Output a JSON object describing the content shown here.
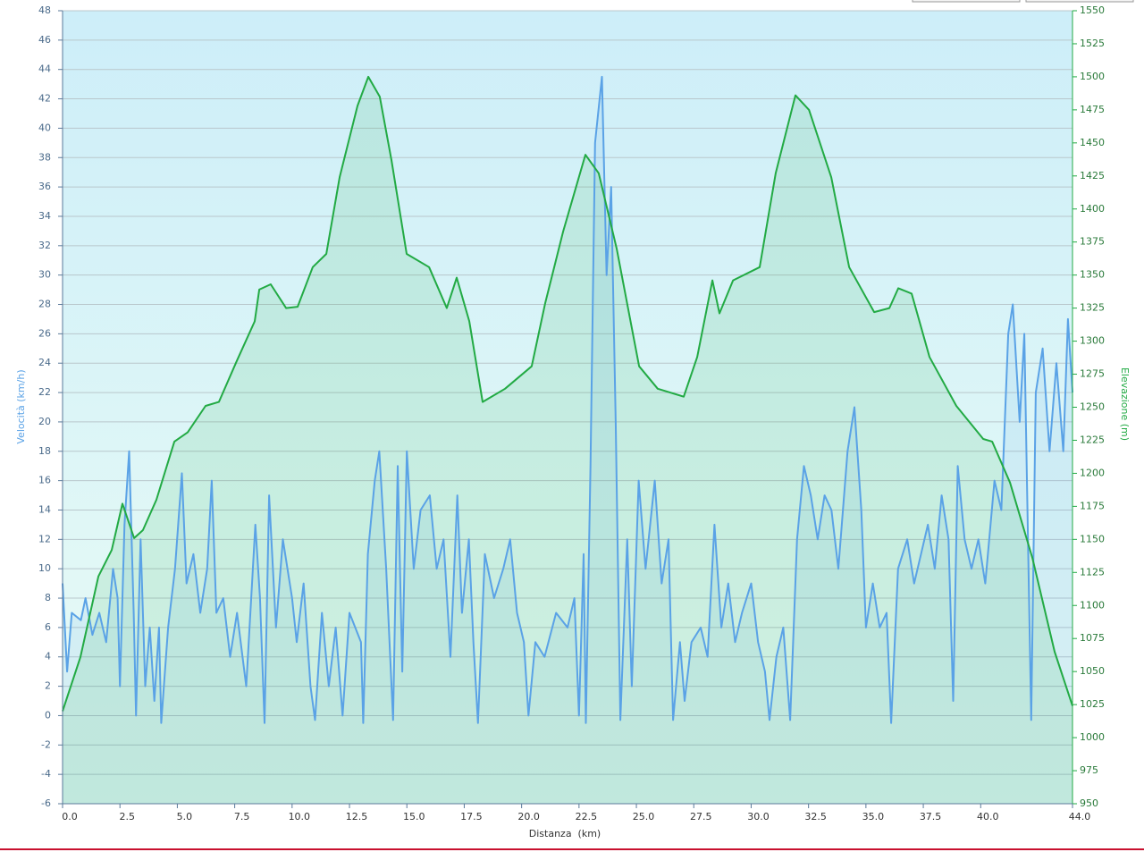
{
  "chart_data": {
    "type": "line",
    "xlabel": "Distanza  (km)",
    "ylabel": "Velocità (km/h)",
    "y2label": "Elevazione (m)",
    "xlim": [
      0,
      44
    ],
    "xticks": [
      {
        "value": 0,
        "label": "0.0"
      },
      2.5,
      {
        "value": 5,
        "label": "5.0"
      },
      7.5,
      {
        "value": 10,
        "label": "10.0"
      },
      12.5,
      {
        "value": 15,
        "label": "15.0"
      },
      17.5,
      {
        "value": 20,
        "label": "20.0"
      },
      22.5,
      {
        "value": 25,
        "label": "25.0"
      },
      27.5,
      {
        "value": 30,
        "label": "30.0"
      },
      32.5,
      {
        "value": 35,
        "label": "35.0"
      },
      37.5,
      {
        "value": 40,
        "label": "40.0"
      },
      {
        "value": 44,
        "label": "44.0"
      }
    ],
    "ylim": [
      -6,
      48
    ],
    "yticks": [
      -6,
      -4,
      -2,
      0,
      2,
      4,
      6,
      8,
      10,
      12,
      14,
      16,
      18,
      20,
      22,
      24,
      26,
      28,
      30,
      32,
      34,
      36,
      38,
      40,
      42,
      44,
      46,
      48
    ],
    "y2lim": [
      950,
      1550
    ],
    "y2ticks": [
      950,
      975,
      1000,
      1025,
      1050,
      1075,
      1100,
      1125,
      1150,
      1175,
      1200,
      1225,
      1250,
      1275,
      1300,
      1325,
      1350,
      1375,
      1400,
      1425,
      1450,
      1475,
      1500,
      1525,
      1550
    ],
    "grid": true,
    "series": [
      {
        "color": "#5aa2e6",
        "axis": "y",
        "x": [
          0,
          0.2,
          0.4,
          0.8,
          1.0,
          1.3,
          1.6,
          1.9,
          2.2,
          2.4,
          2.5,
          2.7,
          2.9,
          3.1,
          3.2,
          3.4,
          3.6,
          3.8,
          4.0,
          4.2,
          4.3,
          4.6,
          4.9,
          5.2,
          5.4,
          5.7,
          6.0,
          6.3,
          6.5,
          6.7,
          7.0,
          7.3,
          7.6,
          8.0,
          8.4,
          8.6,
          8.8,
          9.0,
          9.3,
          9.6,
          10.0,
          10.2,
          10.5,
          10.8,
          11.0,
          11.3,
          11.6,
          11.9,
          12.2,
          12.5,
          13.0,
          13.1,
          13.3,
          13.6,
          13.8,
          14.1,
          14.4,
          14.6,
          14.8,
          15.0,
          15.3,
          15.6,
          16.0,
          16.3,
          16.6,
          16.9,
          17.2,
          17.4,
          17.7,
          17.9,
          18.1,
          18.4,
          18.8,
          19.2,
          19.5,
          19.8,
          20.1,
          20.3,
          20.6,
          21.0,
          21.5,
          22.0,
          22.3,
          22.5,
          22.7,
          22.8,
          23.0,
          23.2,
          23.5,
          23.7,
          23.9,
          24.1,
          24.3,
          24.6,
          24.8,
          25.1,
          25.4,
          25.8,
          26.1,
          26.4,
          26.6,
          26.9,
          27.1,
          27.4,
          27.8,
          28.1,
          28.4,
          28.7,
          29.0,
          29.3,
          29.6,
          30.0,
          30.3,
          30.6,
          30.8,
          31.1,
          31.4,
          31.7,
          32.0,
          32.3,
          32.6,
          32.9,
          33.2,
          33.5,
          33.8,
          34.2,
          34.5,
          34.8,
          35.0,
          35.3,
          35.6,
          35.9,
          36.1,
          36.4,
          36.8,
          37.1,
          37.4,
          37.7,
          38.0,
          38.3,
          38.6,
          38.8,
          39.0,
          39.3,
          39.6,
          39.9,
          40.2,
          40.6,
          40.9,
          41.2,
          41.4,
          41.7,
          41.9,
          42.2,
          42.4,
          42.7,
          43.0,
          43.3,
          43.6,
          43.8,
          44.0
        ],
        "values": [
          9,
          3,
          7,
          6.5,
          8,
          5.5,
          7,
          5,
          10,
          8,
          2,
          13,
          18,
          7,
          0,
          12,
          2,
          6,
          1,
          6,
          -0.5,
          6,
          10,
          16.5,
          9,
          11,
          7,
          10,
          16,
          7,
          8,
          4,
          7,
          2,
          13,
          8,
          -0.5,
          15,
          6,
          12,
          8,
          5,
          9,
          2,
          -0.3,
          7,
          2,
          6,
          0,
          7,
          5,
          -0.5,
          11,
          16,
          18,
          10,
          -0.3,
          17,
          3,
          18,
          10,
          14,
          15,
          10,
          12,
          4,
          15,
          7,
          12,
          5,
          -0.5,
          11,
          8,
          10,
          12,
          7,
          5,
          0,
          5,
          4,
          7,
          6,
          8,
          0,
          11,
          -0.5,
          17,
          39,
          43.5,
          30,
          36,
          20,
          -0.3,
          12,
          2,
          16,
          10,
          16,
          9,
          12,
          -0.3,
          5,
          1,
          5,
          6,
          4,
          13,
          6,
          9,
          5,
          7,
          9,
          5,
          3,
          -0.3,
          4,
          6,
          -0.3,
          12,
          17,
          15,
          12,
          15,
          14,
          10,
          18,
          21,
          14,
          6,
          9,
          6,
          7,
          -0.5,
          10,
          12,
          9,
          11,
          13,
          10,
          15,
          12,
          1,
          17,
          12,
          10,
          12,
          9,
          16,
          14,
          26,
          28,
          20,
          26,
          -0.3,
          22,
          25,
          18,
          24,
          18,
          27,
          22
        ]
      },
      {
        "color": "#22aa44",
        "axis": "y2",
        "x": [
          0,
          0.78,
          1.56,
          2.14,
          2.61,
          3.12,
          3.5,
          4.09,
          4.87,
          5.45,
          6.23,
          6.81,
          7.59,
          8.37,
          8.57,
          9.07,
          9.74,
          10.24,
          10.9,
          11.49,
          12.07,
          12.85,
          13.32,
          13.82,
          14.33,
          14.99,
          15.97,
          16.74,
          17.17,
          17.72,
          18.3,
          19.28,
          20.44,
          21.03,
          21.81,
          22.78,
          23.36,
          24.14,
          25.12,
          25.93,
          27.06,
          27.65,
          28.31,
          28.62,
          29.21,
          30.37,
          31.07,
          31.93,
          32.52,
          33.49,
          34.27,
          35.36,
          36.02,
          36.41,
          36.99,
          37.77,
          38.94,
          40.11,
          40.5,
          41.28,
          42.25,
          43.22,
          44
        ],
        "values": [
          1020,
          1061,
          1122,
          1142,
          1177,
          1151,
          1157,
          1180,
          1224,
          1231,
          1251,
          1254,
          1285,
          1315,
          1339,
          1343,
          1325,
          1326,
          1356,
          1366,
          1424,
          1478,
          1500,
          1485,
          1437,
          1366,
          1356,
          1325,
          1348,
          1315,
          1254,
          1264,
          1281,
          1329,
          1383,
          1441,
          1427,
          1370,
          1281,
          1264,
          1258,
          1288,
          1346,
          1321,
          1346,
          1356,
          1427,
          1486,
          1475,
          1424,
          1356,
          1322,
          1325,
          1340,
          1336,
          1288,
          1251,
          1226,
          1224,
          1193,
          1136,
          1065,
          1024
        ]
      }
    ]
  }
}
